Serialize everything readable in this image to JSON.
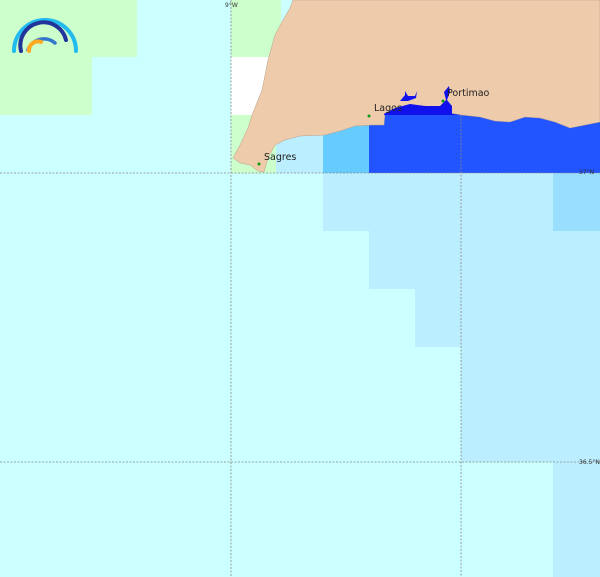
{
  "map": {
    "places": [
      {
        "name": "Sagres"
      },
      {
        "name": "Lagos"
      },
      {
        "name": "Portimao"
      }
    ],
    "graticule": {
      "longitude_labels": [
        "9°W"
      ],
      "latitude_labels": [
        "37°N",
        "36.5°N"
      ]
    },
    "colors": {
      "land": "#eecbab",
      "sea_default": "#ccffff",
      "zone_green": "#ccffcc",
      "zone_light_blue": "#bbeeff",
      "zone_mid_blue": "#66ccff",
      "zone_dark_blue": "#2255ff",
      "estuary": "#1111ee",
      "zone_blue_corner": "#99ddff",
      "place_marker": "#119911"
    },
    "logo": "arc-waves-logo-icon"
  }
}
